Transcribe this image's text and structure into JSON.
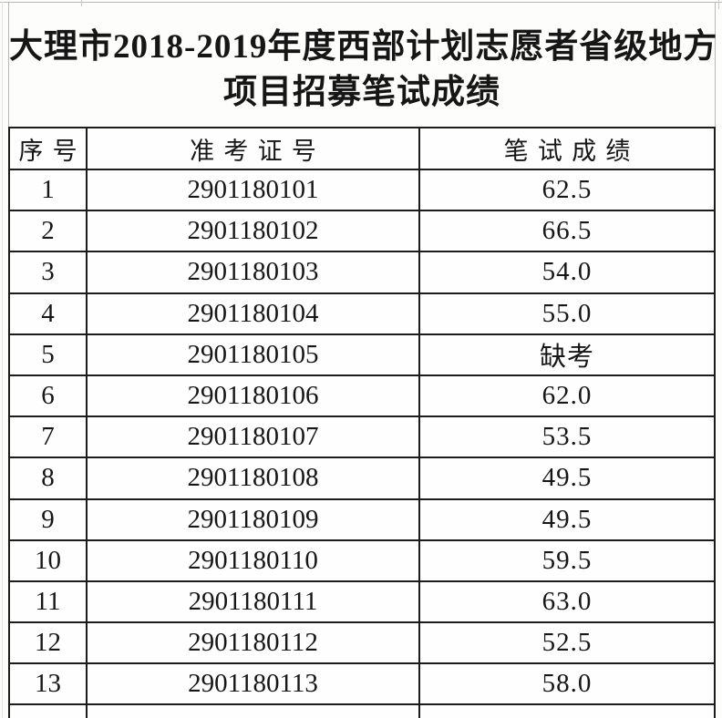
{
  "title": {
    "line1": "大理市2018-2019年度西部计划志愿者省级地方",
    "line2": "项目招募笔试成绩"
  },
  "table": {
    "headers": {
      "index": "序号",
      "ticket": "准考证号",
      "score": "笔试成绩"
    },
    "rows": [
      {
        "index": "1",
        "ticket": "2901180101",
        "score": "62.5"
      },
      {
        "index": "2",
        "ticket": "2901180102",
        "score": "66.5"
      },
      {
        "index": "3",
        "ticket": "2901180103",
        "score": "54.0"
      },
      {
        "index": "4",
        "ticket": "2901180104",
        "score": "55.0"
      },
      {
        "index": "5",
        "ticket": "2901180105",
        "score": "缺考"
      },
      {
        "index": "6",
        "ticket": "2901180106",
        "score": "62.0"
      },
      {
        "index": "7",
        "ticket": "2901180107",
        "score": "53.5"
      },
      {
        "index": "8",
        "ticket": "2901180108",
        "score": "49.5"
      },
      {
        "index": "9",
        "ticket": "2901180109",
        "score": "49.5"
      },
      {
        "index": "10",
        "ticket": "2901180110",
        "score": "59.5"
      },
      {
        "index": "11",
        "ticket": "2901180111",
        "score": "63.0"
      },
      {
        "index": "12",
        "ticket": "2901180112",
        "score": "52.5"
      },
      {
        "index": "13",
        "ticket": "2901180113",
        "score": "58.0"
      }
    ]
  },
  "colors": {
    "table_border": "#1c1c1c",
    "text": "#161616",
    "faint_gridline": "#b9b9b9",
    "background": "#fdfdfc"
  }
}
